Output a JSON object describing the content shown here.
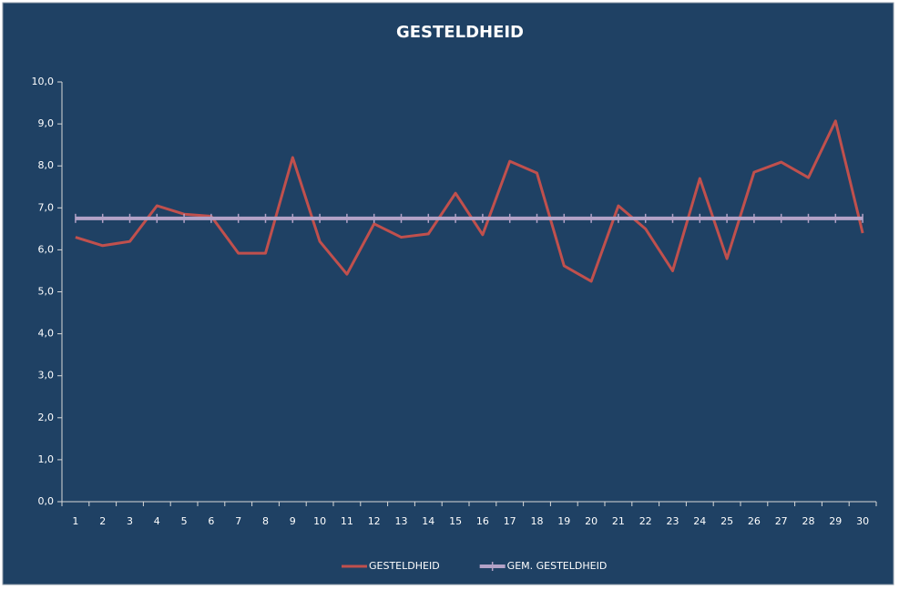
{
  "chart_data": {
    "type": "line",
    "title": "GESTELDHEID",
    "categories": [
      "1",
      "2",
      "3",
      "4",
      "5",
      "6",
      "7",
      "8",
      "9",
      "10",
      "11",
      "12",
      "13",
      "14",
      "15",
      "16",
      "17",
      "18",
      "19",
      "20",
      "21",
      "22",
      "23",
      "24",
      "25",
      "26",
      "27",
      "28",
      "29",
      "30"
    ],
    "series": [
      {
        "name": "GESTELDHEID",
        "color": "#c0504d",
        "values": [
          6.3,
          6.1,
          6.2,
          7.05,
          6.85,
          6.8,
          5.92,
          5.92,
          8.2,
          6.2,
          5.42,
          6.62,
          6.3,
          6.38,
          7.35,
          6.36,
          8.11,
          7.83,
          5.62,
          5.25,
          7.05,
          6.5,
          5.5,
          7.7,
          5.79,
          7.85,
          8.09,
          7.72,
          9.07,
          6.4
        ]
      },
      {
        "name": "GEM. GESTELDHEID",
        "color": "#b3a2c7",
        "values": [
          6.75,
          6.75,
          6.75,
          6.75,
          6.75,
          6.75,
          6.75,
          6.75,
          6.75,
          6.75,
          6.75,
          6.75,
          6.75,
          6.75,
          6.75,
          6.75,
          6.75,
          6.75,
          6.75,
          6.75,
          6.75,
          6.75,
          6.75,
          6.75,
          6.75,
          6.75,
          6.75,
          6.75,
          6.75,
          6.75
        ]
      }
    ],
    "ylim": [
      0,
      10
    ],
    "yticks": [
      {
        "value": 0,
        "label": "0,0"
      },
      {
        "value": 1,
        "label": "1,0"
      },
      {
        "value": 2,
        "label": "2,0"
      },
      {
        "value": 3,
        "label": "3,0"
      },
      {
        "value": 4,
        "label": "4,0"
      },
      {
        "value": 5,
        "label": "5,0"
      },
      {
        "value": 6,
        "label": "6,0"
      },
      {
        "value": 7,
        "label": "7,0"
      },
      {
        "value": 8,
        "label": "8,0"
      },
      {
        "value": 9,
        "label": "9,0"
      },
      {
        "value": 10,
        "label": "10,0"
      }
    ],
    "legend": "bottom"
  }
}
